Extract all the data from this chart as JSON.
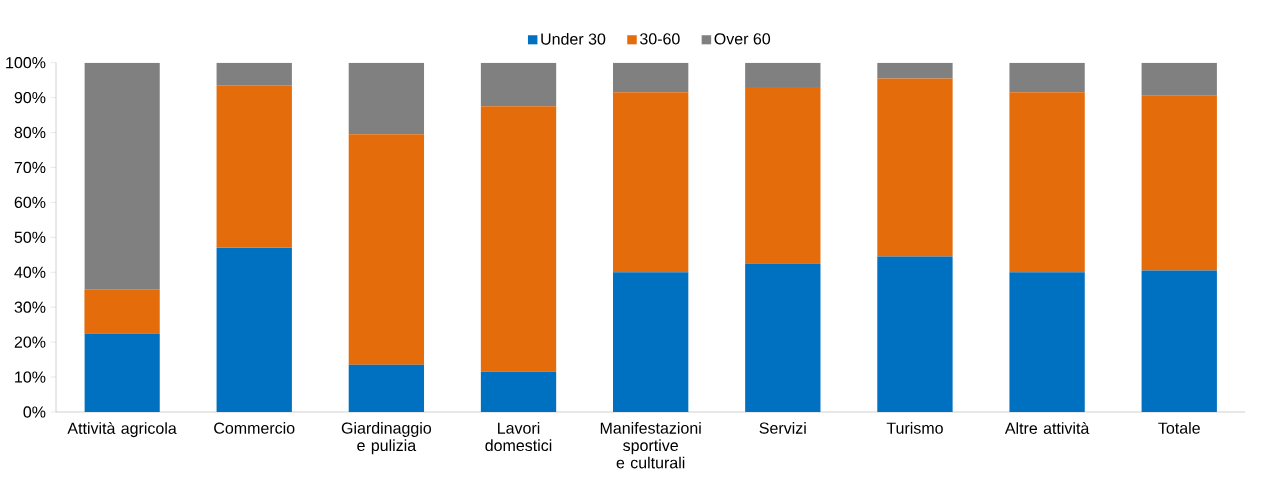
{
  "chart_data": {
    "type": "bar",
    "stacked": true,
    "categories": [
      "Attività agricola",
      "Commercio",
      "Giardinaggio e pulizia",
      "Lavori domestici",
      "Manifestazioni sportive e culturali",
      "Servizi",
      "Turismo",
      "Altre attività",
      "Totale"
    ],
    "series": [
      {
        "name": "Under 30",
        "color": "#0070c0",
        "values": [
          22.5,
          47,
          13.5,
          11.5,
          40,
          42.5,
          44.5,
          40,
          40.5
        ]
      },
      {
        "name": "30-60",
        "color": "#e46c0a",
        "values": [
          12.5,
          46.5,
          66,
          76,
          51.5,
          50.5,
          51,
          51.5,
          50
        ]
      },
      {
        "name": "Over 60",
        "color": "#808080",
        "values": [
          65,
          6.5,
          20.5,
          12.5,
          8.5,
          7,
          4.5,
          8.5,
          9.5
        ]
      }
    ],
    "ylim": [
      0,
      100
    ],
    "yticks": [
      {
        "value": 0,
        "label": "0%"
      },
      {
        "value": 10,
        "label": "10%"
      },
      {
        "value": 20,
        "label": "20%"
      },
      {
        "value": 30,
        "label": "30%"
      },
      {
        "value": 40,
        "label": "40%"
      },
      {
        "value": 50,
        "label": "50%"
      },
      {
        "value": 60,
        "label": "60%"
      },
      {
        "value": 70,
        "label": "70%"
      },
      {
        "value": 80,
        "label": "80%"
      },
      {
        "value": 90,
        "label": "90%"
      },
      {
        "value": 100,
        "label": "100%"
      }
    ],
    "legend": "top"
  }
}
